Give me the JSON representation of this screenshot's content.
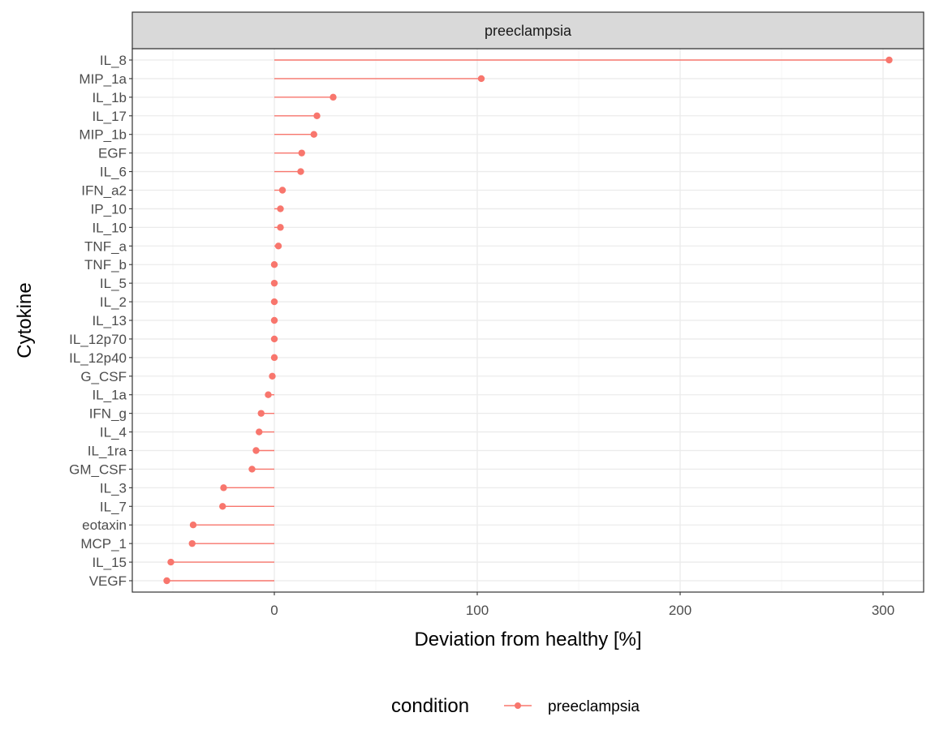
{
  "chart_data": {
    "type": "lollipop",
    "facet_label": "preeclampsia",
    "xlabel": "Deviation from healthy [%]",
    "ylabel": "Cytokine",
    "xlim": [
      -70,
      320
    ],
    "x_ticks": [
      0,
      100,
      200,
      300
    ],
    "x_tick_labels": [
      "0",
      "100",
      "200",
      "300"
    ],
    "grid": true,
    "legend": {
      "title": "condition",
      "position": "bottom",
      "entries": [
        "preeclampsia"
      ]
    },
    "series": [
      {
        "name": "preeclampsia",
        "color": "#F8766D",
        "categories": [
          "IL_8",
          "MIP_1a",
          "IL_1b",
          "IL_17",
          "MIP_1b",
          "EGF",
          "IL_6",
          "IFN_a2",
          "IP_10",
          "IL_10",
          "TNF_a",
          "TNF_b",
          "IL_5",
          "IL_2",
          "IL_13",
          "IL_12p70",
          "IL_12p40",
          "G_CSF",
          "IL_1a",
          "IFN_g",
          "IL_4",
          "IL_1ra",
          "GM_CSF",
          "IL_3",
          "IL_7",
          "eotaxin",
          "MCP_1",
          "IL_15",
          "VEGF"
        ],
        "values": [
          303,
          102,
          29,
          21,
          19.5,
          13.5,
          13,
          4,
          3,
          3,
          2,
          0,
          0,
          0,
          0,
          0,
          0,
          -1,
          -3,
          -6.5,
          -7.5,
          -9,
          -11,
          -25,
          -25.5,
          -40,
          -40.5,
          -51,
          -53
        ]
      }
    ]
  },
  "colors": {
    "series": "#F8766D",
    "panel_border": "#333333",
    "strip_fill": "#d9d9d9",
    "grid": "#ebebeb"
  }
}
